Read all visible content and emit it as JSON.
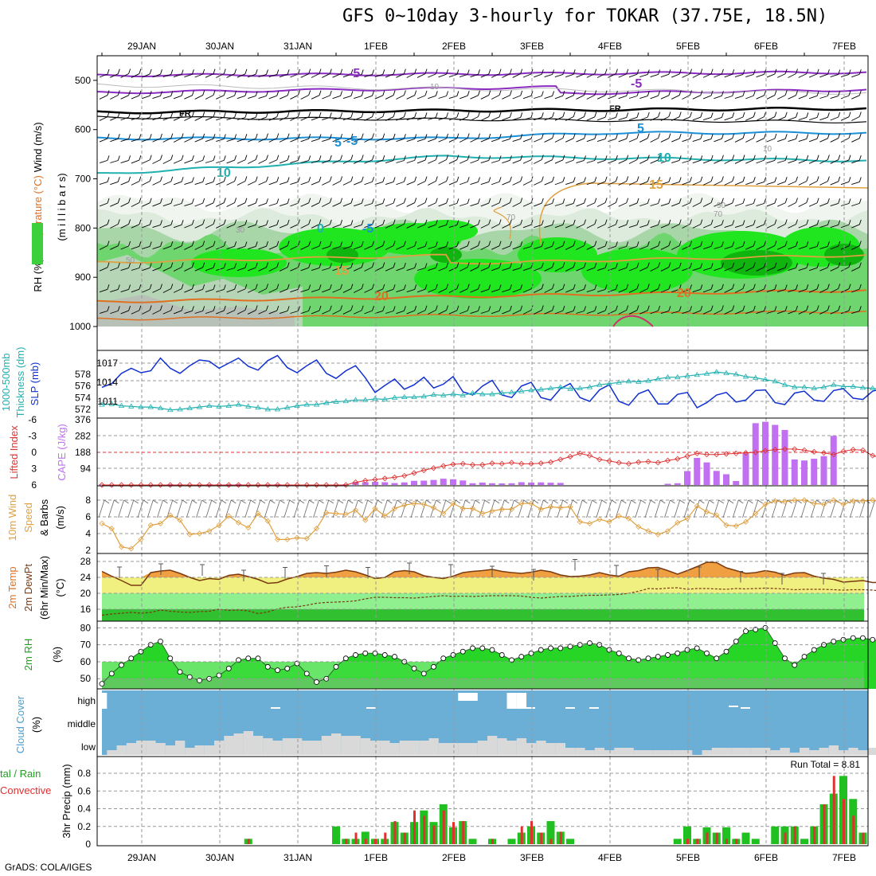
{
  "title": "GFS 0~10day 3-hourly for TOKAR (37.75E, 18.5N)",
  "footer": "GrADS: COLA/IGES",
  "colors": {
    "rh_light": "#dcebdc",
    "rh_mid": "#a9d6a9",
    "rh_green": "#6fd66f",
    "rh_bright": "#1fe61f",
    "rh_dark": "#0fb40f",
    "slp": "#1030d0",
    "thickness": "#20b0b0",
    "cape": "#c070f0",
    "lifted": "#e03030",
    "wind10": "#e0a040",
    "temp_fill": "#f0a040",
    "dew_fill_hi": "#f0f080",
    "dew_fill_mid": "#90f090",
    "dew_fill_lo": "#30c030",
    "rh2m_hi": "#10d010",
    "rh2m_lo": "#70e070",
    "cloud": "#6baed6",
    "cloud_low": "#d9d9d9",
    "precip_total": "#20c020",
    "precip_conv": "#e03030"
  },
  "date_labels": [
    "29JAN",
    "30JAN",
    "31JAN",
    "1FEB",
    "2FEB",
    "3FEB",
    "4FEB",
    "5FEB",
    "6FEB",
    "7FEB"
  ],
  "panel_labels": {
    "upper_y": [
      "RH (%)",
      "Temperature (°C)",
      "Wind (m/s)"
    ],
    "upper_units": "(m i l l i b a r s)",
    "slp": [
      "1000-500mb",
      "Thickness (dm)",
      "SLP (mb)"
    ],
    "cape": [
      "Lifted Index",
      "CAPE (J/kg)"
    ],
    "wind10": [
      "10m Wind",
      "Speed",
      "& Barbs",
      "(m/s)"
    ],
    "temp": [
      "2m Temp",
      "2m DewPt",
      "(6hr Min/Max)",
      "(°C)"
    ],
    "rh2m": [
      "2m RH",
      "(%)"
    ],
    "cloud": [
      "Cloud Cover",
      "(%)"
    ],
    "precip": [
      "tal / Rain",
      "Convective",
      "3hr Precip (mm)"
    ]
  },
  "run_total": "Run Total =  8.81",
  "chart_data": [
    {
      "type": "contour",
      "name": "upper_air",
      "ylabel": "millibars",
      "ylim": [
        450,
        1000
      ],
      "yticks": [
        "500",
        "600",
        "700",
        "800",
        "900",
        "1000"
      ],
      "contour_labels": {
        "temperature": [
          "-5",
          "-5",
          "FR",
          "FR",
          "-5",
          "5",
          "5",
          "10",
          "10",
          "15",
          "15",
          "20",
          "20",
          "0",
          "-5"
        ],
        "rh": [
          "10",
          "10",
          "30",
          "50",
          "70",
          "70",
          "90"
        ]
      }
    },
    {
      "type": "line",
      "name": "slp_thickness",
      "left_ticks": [
        "578",
        "576",
        "574",
        "572"
      ],
      "right_ticks": [
        "1017",
        "1014",
        "1011"
      ],
      "slp": [
        1013.2,
        1013.8,
        1015.4,
        1016.2,
        1015.5,
        1015.8,
        1017.8,
        1016.2,
        1015.4,
        1016.6,
        1017.5,
        1017.3,
        1016.2,
        1017.0,
        1017.8,
        1016.5,
        1015.9,
        1017.4,
        1018.2,
        1016.3,
        1015.5,
        1016.6,
        1017.5,
        1015.4,
        1014.6,
        1015.8,
        1016.6,
        1014.7,
        1012.4,
        1013.5,
        1014.5,
        1012.9,
        1013.6,
        1014.8,
        1013.1,
        1013.7,
        1014.9,
        1012.5,
        1012.0,
        1013.4,
        1014.3,
        1012.0,
        1011.6,
        1013.4,
        1014.0,
        1011.6,
        1011.2,
        1013.0,
        1013.8,
        1011.6,
        1011.0,
        1012.8,
        1013.6,
        1011.0,
        1010.4,
        1012.2,
        1012.8,
        1010.6,
        1010.6,
        1012.1,
        1012.4,
        1010.0,
        1010.8,
        1012.0,
        1012.4,
        1010.9,
        1011.2,
        1012.7,
        1012.8,
        1010.8,
        1010.5,
        1012.3,
        1012.6,
        1011.2,
        1011.0,
        1012.7,
        1013.0,
        1011.5,
        1011.3,
        1012.6,
        1013.0,
        1011.2,
        1011.6,
        1012.8,
        1013.2,
        1012.5,
        1014.0,
        1016.0
      ],
      "thickness": [
        572.8,
        572.9,
        572.6,
        572.5,
        572.4,
        572.4,
        572.2,
        571.9,
        572.0,
        572.2,
        572.4,
        572.6,
        572.5,
        572.6,
        572.8,
        572.5,
        572.3,
        572.0,
        572.0,
        572.3,
        572.6,
        572.8,
        572.8,
        573.1,
        573.3,
        573.4,
        573.6,
        573.6,
        573.8,
        573.7,
        574.0,
        574.1,
        574.1,
        574.2,
        574.5,
        574.4,
        574.6,
        574.4,
        574.8,
        574.6,
        574.6,
        574.8,
        574.9,
        575.1,
        575.3,
        575.4,
        575.6,
        575.8,
        575.5,
        575.6,
        575.8,
        576.2,
        576.4,
        576.6,
        576.8,
        576.7,
        576.9,
        577.2,
        577.5,
        577.5,
        577.7,
        577.9,
        578.1,
        578.4,
        578.2,
        578.0,
        577.6,
        577.4,
        577.1,
        576.8,
        576.2,
        575.8,
        575.8,
        575.6,
        575.8,
        576.2,
        575.9,
        575.9,
        575.7,
        575.6,
        575.4,
        575.8,
        575.4,
        575.0,
        574.7,
        574.5,
        573.5,
        572.9
      ]
    },
    {
      "type": "bar",
      "name": "cape_lifted_index",
      "left_ticks": [
        "-6",
        "-3",
        "0",
        "3",
        "6"
      ],
      "right_ticks": [
        "376",
        "282",
        "188",
        "94"
      ],
      "cape": [
        3,
        0,
        2,
        0,
        0,
        0,
        0,
        4,
        3,
        0,
        0,
        4,
        3,
        4,
        5,
        0,
        0,
        3,
        4,
        0,
        0,
        0,
        2,
        2,
        0,
        4,
        16,
        16,
        18,
        16,
        11,
        15,
        24,
        25,
        29,
        36,
        33,
        26,
        10,
        14,
        10,
        9,
        10,
        16,
        14,
        15,
        13,
        12,
        0,
        0,
        0,
        0,
        0,
        0,
        0,
        0,
        0,
        0,
        7,
        10,
        80,
        156,
        130,
        81,
        62,
        23,
        182,
        356,
        364,
        346,
        317,
        147,
        141,
        151,
        166,
        283,
        0,
        0,
        0,
        0,
        5,
        8,
        5,
        12,
        15,
        20,
        16,
        5
      ],
      "lifted_index": [
        6,
        6,
        6,
        6,
        6,
        6,
        6,
        6,
        6,
        6,
        6,
        6,
        6,
        6,
        6,
        6,
        6,
        6,
        6,
        6,
        6,
        6,
        6,
        6,
        6,
        6,
        5.5,
        5.2,
        5,
        4.8,
        4.6,
        4.3,
        3.8,
        3.3,
        2.9,
        2.5,
        2.2,
        2.1,
        2.3,
        2.3,
        2.0,
        2.1,
        1.9,
        2.1,
        2.1,
        2.0,
        1.8,
        1.3,
        0.8,
        0.2,
        0.6,
        1.3,
        1.6,
        1.9,
        2.1,
        1.8,
        1.7,
        1.9,
        1.5,
        1.2,
        0.7,
        0.2,
        0.4,
        0.4,
        0.3,
        0.2,
        0.1,
        0,
        -0.3,
        -0.5,
        -0.6,
        -0.6,
        -0.4,
        -0.1,
        0.1,
        0.4,
        -0.2,
        -0.5,
        -0.4,
        0.6,
        1.1,
        1.5,
        1.9,
        2.0,
        2.6,
        2.7,
        3.7,
        4.8
      ]
    },
    {
      "type": "line",
      "name": "wind10m",
      "ylim": [
        2,
        9
      ],
      "yticks": [
        "8",
        "6",
        "4",
        "2"
      ],
      "values": [
        5.2,
        4.6,
        2.4,
        2.2,
        3.3,
        5.0,
        5.2,
        6.2,
        5.6,
        3.9,
        4.0,
        4.3,
        5.0,
        6.1,
        5.3,
        4.7,
        6.4,
        5.5,
        3.3,
        3.3,
        3.5,
        3.4,
        4.6,
        6.5,
        6.4,
        6.3,
        6.8,
        5.6,
        7.0,
        6.1,
        7.0,
        7.4,
        7.6,
        7.5,
        7.1,
        6.4,
        7.6,
        7.0,
        7.0,
        6.4,
        6.7,
        6.9,
        6.9,
        7.6,
        7.6,
        6.9,
        7.2,
        7.1,
        7.2,
        5.4,
        5.2,
        5.7,
        5.4,
        6.1,
        5.8,
        4.8,
        4.3,
        3.9,
        4.3,
        5.3,
        5.8,
        7.3,
        6.6,
        6.2,
        5.0,
        4.9,
        5.4,
        6.4,
        7.5,
        7.9,
        7.8,
        8.0,
        8.0,
        7.6,
        7.5,
        8.0,
        7.5,
        7.9,
        7.9,
        8.0,
        7.8,
        7.8,
        8.1,
        8.6,
        8.5,
        8.9,
        9.3,
        9.0
      ]
    },
    {
      "type": "area",
      "name": "temp_dewpoint",
      "ylim": [
        13,
        29
      ],
      "yticks": [
        "28",
        "24",
        "20",
        "16"
      ],
      "temp": [
        25.5,
        24.3,
        23.2,
        22.0,
        22.0,
        25.2,
        25.6,
        25.8,
        25.0,
        24.0,
        23.2,
        23.7,
        23.5,
        24.5,
        24.8,
        24.2,
        23.5,
        22.5,
        22.7,
        23.6,
        24.2,
        25.0,
        25.2,
        25.0,
        25.3,
        25.8,
        25.4,
        24.6,
        23.7,
        24.0,
        25.4,
        25.7,
        25.4,
        24.4,
        24.0,
        23.7,
        24.3,
        25.2,
        25.5,
        25.7,
        26.0,
        25.5,
        25.2,
        25.0,
        25.3,
        25.8,
        25.4,
        24.6,
        24.2,
        24.3,
        24.6,
        25.2,
        24.6,
        24.3,
        25.4,
        25.7,
        26.4,
        26.5,
        25.7,
        24.8,
        25.7,
        26.7,
        27.8,
        27.7,
        26.4,
        25.7,
        25.0,
        25.2,
        25.7,
        25.3,
        24.5,
        25.1,
        25.2,
        24.3,
        23.8,
        23.5,
        22.8,
        23.0,
        23.2,
        22.7,
        22.8,
        23.2,
        23.0,
        22.9,
        22.6,
        22.7,
        22.8,
        23.0
      ],
      "dewpoint": [
        14.5,
        14.8,
        15.0,
        15.2,
        15.0,
        15.2,
        15.8,
        15.5,
        15.3,
        15.2,
        15.4,
        15.5,
        16.0,
        15.7,
        15.8,
        15.6,
        14.9,
        15.3,
        16.1,
        16.5,
        16.6,
        17.0,
        17.5,
        17.7,
        17.8,
        17.9,
        18.1,
        18.6,
        19.0,
        19.0,
        18.9,
        18.9,
        18.8,
        19.0,
        19.2,
        19.4,
        19.2,
        19.3,
        19.2,
        19.3,
        19.4,
        19.4,
        19.4,
        19.3,
        19.0,
        18.8,
        19.0,
        19.2,
        19.2,
        19.4,
        19.5,
        19.5,
        19.6,
        19.7,
        20.0,
        20.5,
        21.2,
        21.1,
        21.3,
        21.4,
        21.0,
        21.2,
        21.2,
        21.1,
        21.0,
        21.2,
        21.1,
        21.2,
        21.3,
        21.2,
        21.1,
        20.9,
        21.0,
        21.0,
        21.0,
        20.9,
        20.8,
        20.9,
        20.9,
        20.8,
        20.5,
        20.1,
        19.9,
        19.2,
        18.9,
        18.2,
        17.5,
        16.5
      ],
      "minmax_bars": [
        "26.6",
        "27.4",
        "27.2",
        "25.8",
        "26.5",
        "26.9",
        "26.5",
        "27.6",
        "27.2",
        "26.8",
        "26.0",
        "28.5",
        "27.0",
        "26.0",
        "26.6",
        "25.5",
        "25.0",
        "25.0"
      ]
    },
    {
      "type": "area",
      "name": "rh2m",
      "ylim": [
        44,
        83
      ],
      "yticks": [
        "80",
        "70",
        "60",
        "50"
      ],
      "values": [
        47,
        53,
        58,
        62,
        66,
        70,
        72,
        62,
        54,
        51,
        49,
        50,
        52,
        56,
        61,
        62,
        62,
        57,
        55,
        56,
        59,
        53,
        48,
        50,
        57,
        62,
        64,
        65,
        65,
        64,
        63,
        60,
        56,
        53,
        57,
        62,
        64,
        66,
        68,
        68,
        67,
        64,
        61,
        63,
        65,
        67,
        68,
        68,
        69,
        70,
        71,
        70,
        67,
        65,
        62,
        61,
        62,
        63,
        64,
        65,
        67,
        68,
        65,
        62,
        66,
        72,
        78,
        79,
        80,
        71,
        62,
        58,
        63,
        67,
        70,
        72,
        73,
        74,
        74,
        73,
        72,
        70,
        69,
        70,
        70,
        71,
        72,
        70,
        69,
        70,
        72,
        73,
        74,
        74,
        73,
        72,
        70,
        69,
        70,
        72,
        73,
        74,
        74,
        73,
        70,
        67
      ]
    },
    {
      "type": "area",
      "name": "cloud_cover",
      "yticks": [
        "high",
        "middle",
        "low"
      ],
      "low": [
        0,
        2,
        4,
        5,
        6,
        6,
        5,
        4,
        6,
        3,
        4,
        4,
        6,
        8,
        9,
        10,
        8,
        7,
        6,
        7,
        7,
        6,
        6,
        8,
        9,
        8,
        8,
        7,
        6,
        6,
        5,
        6,
        6,
        6,
        7,
        5,
        5,
        5,
        5,
        6,
        8,
        7,
        6,
        7,
        5,
        6,
        5,
        5,
        3,
        3,
        2,
        3,
        2,
        3,
        3,
        2,
        2,
        2,
        2,
        2,
        2,
        0,
        2,
        3,
        3,
        3,
        3,
        3,
        3,
        2,
        3,
        1,
        3,
        2,
        3,
        4,
        2,
        3,
        2,
        3,
        2,
        4,
        2,
        3,
        2,
        3,
        2,
        4
      ],
      "high_gaps": [
        2,
        0,
        0,
        0,
        0,
        0,
        0,
        0,
        0,
        0,
        0,
        0,
        0,
        0,
        0,
        0,
        0,
        0,
        0,
        0,
        0,
        0,
        0,
        0,
        0,
        0,
        0,
        0,
        0,
        0,
        0,
        0,
        0,
        0,
        0,
        0,
        0,
        1,
        1,
        0,
        0,
        0,
        2,
        2,
        0,
        0,
        0,
        0,
        0,
        0,
        0,
        0,
        0,
        0,
        0,
        0,
        0,
        0,
        0,
        0,
        0,
        0,
        0,
        0,
        0,
        0,
        0,
        0,
        0,
        0,
        0,
        0,
        0,
        0,
        0,
        0,
        0,
        0,
        0,
        0,
        0,
        0,
        0,
        0,
        0,
        0,
        0,
        0
      ]
    },
    {
      "type": "bar",
      "name": "precip3hr",
      "ylim": [
        0,
        0.9
      ],
      "yticks": [
        "0.8",
        "0.6",
        "0.4",
        "0.2",
        "0"
      ],
      "total": [
        0,
        0,
        0,
        0,
        0,
        0,
        0,
        0,
        0,
        0,
        0,
        0,
        0,
        0,
        0,
        0.06,
        0,
        0,
        0,
        0,
        0,
        0,
        0,
        0,
        0.2,
        0.06,
        0.06,
        0.14,
        0.06,
        0.06,
        0.25,
        0.13,
        0.25,
        0.38,
        0.25,
        0.45,
        0.19,
        0.26,
        0.06,
        0,
        0.06,
        0,
        0.06,
        0.13,
        0.2,
        0.13,
        0.26,
        0.14,
        0.06,
        0,
        0,
        0,
        0,
        0,
        0,
        0,
        0,
        0,
        0,
        0.06,
        0.2,
        0.06,
        0.19,
        0.13,
        0.19,
        0.06,
        0.13,
        0.06,
        0,
        0.2,
        0.2,
        0.2,
        0.06,
        0.2,
        0.45,
        0.57,
        0.77,
        0.51,
        0.13,
        0,
        0,
        0,
        0.2,
        0.06,
        0.2,
        0,
        0.06,
        0.06,
        0.13,
        0.2,
        0.32,
        0.32,
        0.32,
        0.13
      ],
      "convective": [
        0,
        0,
        0,
        0,
        0,
        0,
        0,
        0,
        0,
        0,
        0,
        0,
        0,
        0,
        0,
        0.06,
        0,
        0,
        0,
        0,
        0,
        0,
        0,
        0,
        0,
        0.06,
        0.13,
        0.06,
        0.06,
        0.13,
        0.26,
        0.13,
        0.38,
        0.32,
        0.21,
        0.38,
        0.25,
        0.26,
        0,
        0,
        0.06,
        0,
        0,
        0.2,
        0.26,
        0.13,
        0.06,
        0.14,
        0,
        0,
        0,
        0,
        0,
        0,
        0,
        0,
        0,
        0,
        0,
        0,
        0.06,
        0.06,
        0.13,
        0.13,
        0.06,
        0.06,
        0,
        0,
        0,
        0,
        0.13,
        0.2,
        0,
        0.2,
        0.45,
        0.77,
        0.51,
        0.32,
        0.13,
        0,
        0,
        0,
        0.13,
        0,
        0.06,
        0,
        0,
        0.06,
        0.13,
        0.2,
        0.26,
        0.26,
        0.26,
        0.13
      ]
    }
  ]
}
